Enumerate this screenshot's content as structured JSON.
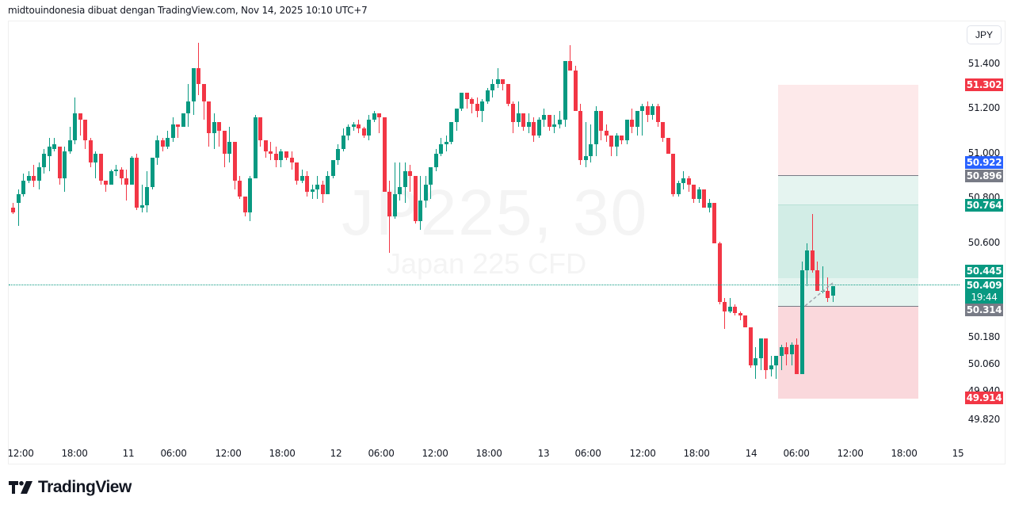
{
  "caption": "midtouindonesia dibuat dengan TradingView.com, Nov 14, 2025 10:10 UTC+7",
  "watermark": {
    "symbol": "JP225, 30",
    "description": "Japan 225 CFD"
  },
  "currency": "JPY",
  "brand": {
    "name": "TradingView"
  },
  "colors": {
    "up": "#089981",
    "down": "#f23645",
    "target_zone": "#d2ede6",
    "target_zone_light": "#e5f4f0",
    "stop_zone": "#fad8dc",
    "stop_zone_light": "#fde9ea",
    "entry_line": "#787b86",
    "current_price_line": "#089981",
    "blue_label": "#2962ff"
  },
  "price_scale": {
    "ticks": [
      "51.400",
      "51.200",
      "51.000",
      "50.800",
      "50.600",
      "50.180",
      "50.060",
      "49.940",
      "49.820"
    ]
  },
  "price_labels": [
    {
      "value": "51.302",
      "color": "#f23645"
    },
    {
      "value": "50.922",
      "color": "#2962ff"
    },
    {
      "value": "50.896",
      "color": "#787b86"
    },
    {
      "value": "50.764",
      "color": "#089981"
    },
    {
      "value": "50.445",
      "color": "#089981"
    },
    {
      "value": "50.409",
      "color": "#089981"
    },
    {
      "value": "19:44",
      "color": "#089981"
    },
    {
      "value": "50.314",
      "color": "#787b86"
    },
    {
      "value": "49.914",
      "color": "#f23645"
    }
  ],
  "time_axis": {
    "ticks": [
      "12:00",
      "18:00",
      "11",
      "06:00",
      "12:00",
      "18:00",
      "12",
      "06:00",
      "12:00",
      "18:00",
      "13",
      "06:00",
      "12:00",
      "18:00",
      "14",
      "06:00",
      "12:00",
      "18:00",
      "15"
    ]
  },
  "chart_data": {
    "type": "candlestick",
    "title": "JP225, 30",
    "subtitle": "Japan 225 CFD",
    "xlabel": "",
    "ylabel": "JPY",
    "ylim": [
      49.78,
      51.58
    ],
    "grid": false,
    "x_ticks": [
      "12:00",
      "18:00",
      "11",
      "06:00",
      "12:00",
      "18:00",
      "12",
      "06:00",
      "12:00",
      "18:00",
      "13",
      "06:00",
      "12:00",
      "18:00",
      "14",
      "06:00",
      "12:00",
      "18:00",
      "15"
    ],
    "y_ticks": [
      51.4,
      51.2,
      51.0,
      50.8,
      50.6,
      50.18,
      50.06,
      49.94,
      49.82
    ],
    "last_price": 50.409,
    "countdown": "19:44",
    "position_tool": {
      "type": "long",
      "entry": 50.896,
      "take_profit": 51.302,
      "stop_loss": 49.914,
      "other_levels": [
        50.922,
        50.764,
        50.445,
        50.314
      ]
    },
    "candles_ohlc": [
      [
        50.76,
        50.78,
        50.73,
        50.74
      ],
      [
        50.78,
        50.84,
        50.68,
        50.82
      ],
      [
        50.82,
        50.91,
        50.81,
        50.88
      ],
      [
        50.88,
        50.92,
        50.87,
        50.9
      ],
      [
        50.9,
        50.95,
        50.85,
        50.88
      ],
      [
        50.88,
        50.96,
        50.84,
        50.94
      ],
      [
        50.94,
        51.02,
        50.91,
        51.0
      ],
      [
        50.99,
        51.07,
        50.92,
        51.03
      ],
      [
        51.02,
        51.07,
        51.01,
        51.04
      ],
      [
        51.03,
        51.03,
        50.86,
        50.89
      ],
      [
        50.89,
        51.03,
        50.83,
        51.01
      ],
      [
        51.01,
        51.12,
        51.0,
        51.06
      ],
      [
        51.06,
        51.25,
        51.04,
        51.18
      ],
      [
        51.18,
        51.14,
        51.08,
        51.15
      ],
      [
        51.15,
        51.14,
        51.02,
        51.06
      ],
      [
        51.06,
        51.07,
        50.94,
        50.96
      ],
      [
        50.96,
        51.01,
        50.89,
        51.0
      ],
      [
        51.0,
        50.99,
        50.86,
        50.88
      ],
      [
        50.88,
        50.88,
        50.83,
        50.86
      ],
      [
        50.86,
        50.93,
        50.86,
        50.92
      ],
      [
        50.92,
        50.95,
        50.9,
        50.93
      ],
      [
        50.93,
        50.94,
        50.86,
        50.89
      ],
      [
        50.89,
        50.93,
        50.79,
        50.86
      ],
      [
        50.86,
        50.99,
        50.87,
        50.98
      ],
      [
        50.98,
        51.0,
        50.75,
        50.76
      ],
      [
        50.76,
        50.86,
        50.74,
        50.77
      ],
      [
        50.77,
        50.92,
        50.74,
        50.85
      ],
      [
        50.85,
        50.98,
        50.84,
        50.98
      ],
      [
        50.98,
        51.08,
        50.95,
        51.06
      ],
      [
        51.06,
        51.07,
        51.01,
        51.03
      ],
      [
        51.03,
        51.1,
        51.02,
        51.07
      ],
      [
        51.07,
        51.16,
        51.05,
        51.13
      ],
      [
        51.13,
        51.13,
        51.07,
        51.12
      ],
      [
        51.12,
        51.18,
        51.12,
        51.18
      ],
      [
        51.18,
        51.31,
        51.12,
        51.23
      ],
      [
        51.23,
        51.36,
        51.17,
        51.38
      ],
      [
        51.38,
        51.49,
        51.26,
        51.31
      ],
      [
        51.31,
        51.25,
        51.15,
        51.23
      ],
      [
        51.23,
        51.16,
        51.03,
        51.09
      ],
      [
        51.09,
        51.18,
        51.02,
        51.14
      ],
      [
        51.14,
        51.13,
        51.03,
        51.1
      ],
      [
        51.1,
        51.09,
        50.94,
        51.0
      ],
      [
        51.0,
        51.12,
        50.96,
        51.05
      ],
      [
        51.05,
        51.04,
        50.84,
        50.88
      ],
      [
        50.88,
        50.9,
        50.8,
        50.81
      ],
      [
        50.81,
        50.8,
        50.72,
        50.74
      ],
      [
        50.74,
        50.9,
        50.7,
        50.89
      ],
      [
        50.89,
        51.17,
        51.05,
        51.16
      ],
      [
        51.16,
        51.14,
        51.03,
        51.06
      ],
      [
        51.06,
        51.05,
        50.98,
        51.01
      ],
      [
        51.01,
        51.05,
        50.97,
        51.0
      ],
      [
        51.0,
        51.03,
        50.94,
        50.97
      ],
      [
        50.97,
        51.02,
        50.94,
        51.01
      ],
      [
        51.01,
        50.99,
        50.97,
        50.98
      ],
      [
        50.98,
        51.01,
        50.93,
        50.96
      ],
      [
        50.96,
        50.96,
        50.86,
        50.88
      ],
      [
        50.88,
        50.93,
        50.87,
        50.9
      ],
      [
        50.9,
        50.92,
        50.81,
        50.83
      ],
      [
        50.83,
        50.86,
        50.8,
        50.84
      ],
      [
        50.84,
        50.9,
        50.8,
        50.86
      ],
      [
        50.86,
        50.88,
        50.78,
        50.82
      ],
      [
        50.82,
        50.92,
        50.82,
        50.9
      ],
      [
        50.9,
        50.96,
        50.89,
        50.97
      ],
      [
        50.97,
        51.04,
        50.95,
        51.02
      ],
      [
        51.02,
        51.11,
        51.01,
        51.08
      ],
      [
        51.08,
        51.13,
        51.06,
        51.12
      ],
      [
        51.12,
        51.14,
        51.1,
        51.13
      ],
      [
        51.13,
        51.15,
        51.09,
        51.11
      ],
      [
        51.11,
        51.12,
        51.07,
        51.08
      ],
      [
        51.08,
        51.17,
        51.06,
        51.15
      ],
      [
        51.15,
        51.19,
        51.14,
        51.18
      ],
      [
        51.18,
        51.17,
        51.09,
        51.16
      ],
      [
        51.16,
        51.15,
        50.86,
        50.83
      ],
      [
        50.83,
        50.88,
        50.56,
        50.72
      ],
      [
        50.72,
        50.96,
        50.71,
        50.82
      ],
      [
        50.82,
        50.96,
        50.79,
        50.85
      ],
      [
        50.85,
        50.96,
        50.78,
        50.92
      ],
      [
        50.92,
        50.95,
        50.83,
        50.9
      ],
      [
        50.9,
        50.88,
        50.69,
        50.7
      ],
      [
        50.7,
        50.9,
        50.66,
        50.79
      ],
      [
        50.79,
        50.9,
        50.76,
        50.86
      ],
      [
        50.86,
        50.92,
        50.8,
        50.94
      ],
      [
        50.94,
        51.02,
        50.92,
        51.0
      ],
      [
        51.0,
        51.07,
        50.99,
        51.04
      ],
      [
        51.04,
        51.08,
        51.01,
        51.05
      ],
      [
        51.05,
        51.14,
        51.04,
        51.14
      ],
      [
        51.14,
        51.19,
        51.1,
        51.2
      ],
      [
        51.2,
        51.27,
        51.19,
        51.27
      ],
      [
        51.27,
        51.25,
        51.2,
        51.24
      ],
      [
        51.24,
        51.25,
        51.18,
        51.22
      ],
      [
        51.22,
        51.25,
        51.16,
        51.19
      ],
      [
        51.19,
        51.24,
        51.14,
        51.23
      ],
      [
        51.23,
        51.29,
        51.22,
        51.28
      ],
      [
        51.28,
        51.33,
        51.25,
        51.31
      ],
      [
        51.31,
        51.38,
        51.29,
        51.33
      ],
      [
        51.33,
        51.33,
        51.28,
        51.31
      ],
      [
        51.31,
        51.29,
        51.21,
        51.22
      ],
      [
        51.22,
        51.23,
        51.09,
        51.14
      ],
      [
        51.14,
        51.23,
        51.12,
        51.18
      ],
      [
        51.18,
        51.16,
        51.1,
        51.12
      ],
      [
        51.12,
        51.18,
        51.09,
        51.14
      ],
      [
        51.14,
        51.16,
        51.05,
        51.08
      ],
      [
        51.08,
        51.16,
        51.07,
        51.15
      ],
      [
        51.15,
        51.2,
        51.12,
        51.17
      ],
      [
        51.17,
        51.16,
        51.1,
        51.12
      ],
      [
        51.12,
        51.17,
        51.09,
        51.13
      ],
      [
        51.13,
        51.19,
        51.11,
        51.15
      ],
      [
        51.15,
        51.28,
        51.12,
        51.41
      ],
      [
        51.41,
        51.48,
        51.37,
        51.37
      ],
      [
        51.37,
        51.39,
        51.19,
        51.19
      ],
      [
        51.19,
        51.22,
        50.95,
        50.97
      ],
      [
        50.97,
        51.14,
        50.94,
        50.99
      ],
      [
        50.99,
        51.13,
        50.96,
        51.04
      ],
      [
        51.04,
        51.21,
        50.99,
        51.19
      ],
      [
        51.19,
        51.17,
        51.06,
        51.1
      ],
      [
        51.1,
        51.13,
        51.05,
        51.08
      ],
      [
        51.08,
        51.06,
        50.99,
        51.03
      ],
      [
        51.03,
        51.09,
        50.99,
        51.08
      ],
      [
        51.08,
        51.07,
        51.04,
        51.06
      ],
      [
        51.06,
        51.15,
        51.04,
        51.15
      ],
      [
        51.15,
        51.2,
        51.09,
        51.12
      ],
      [
        51.12,
        51.18,
        51.08,
        51.19
      ],
      [
        51.19,
        51.22,
        51.08,
        51.21
      ],
      [
        51.21,
        51.23,
        51.14,
        51.17
      ],
      [
        51.17,
        51.22,
        51.15,
        51.21
      ],
      [
        51.21,
        51.22,
        51.12,
        51.14
      ],
      [
        51.14,
        51.11,
        51.05,
        51.07
      ],
      [
        51.07,
        51.07,
        51.0,
        51.0
      ],
      [
        51.0,
        50.99,
        50.81,
        50.82
      ],
      [
        50.82,
        50.88,
        50.81,
        50.87
      ],
      [
        50.87,
        50.92,
        50.84,
        50.89
      ],
      [
        50.89,
        50.9,
        50.83,
        50.86
      ],
      [
        50.86,
        50.86,
        50.78,
        50.8
      ],
      [
        50.8,
        50.85,
        50.78,
        50.84
      ],
      [
        50.84,
        50.83,
        50.76,
        50.76
      ],
      [
        50.76,
        50.8,
        50.74,
        50.78
      ],
      [
        50.78,
        50.78,
        50.6,
        50.6
      ],
      [
        50.6,
        50.61,
        50.33,
        50.34
      ],
      [
        50.34,
        50.36,
        50.22,
        50.3
      ],
      [
        50.3,
        50.36,
        50.29,
        50.32
      ],
      [
        50.32,
        50.33,
        50.28,
        50.29
      ],
      [
        50.29,
        50.3,
        50.26,
        50.28
      ],
      [
        50.28,
        50.28,
        50.23,
        50.23
      ],
      [
        50.23,
        50.22,
        50.05,
        50.06
      ],
      [
        50.06,
        50.14,
        50.0,
        50.09
      ],
      [
        50.09,
        50.18,
        50.04,
        50.18
      ],
      [
        50.18,
        50.18,
        50.0,
        50.04
      ],
      [
        50.04,
        50.1,
        50.01,
        50.06
      ],
      [
        50.06,
        50.09,
        50.0,
        50.1
      ],
      [
        50.1,
        50.15,
        50.04,
        50.14
      ],
      [
        50.14,
        50.16,
        50.06,
        50.11
      ],
      [
        50.11,
        50.16,
        50.06,
        50.15
      ],
      [
        50.15,
        50.18,
        50.05,
        50.02
      ],
      [
        50.02,
        50.52,
        50.02,
        50.48
      ],
      [
        50.48,
        50.6,
        50.41,
        50.57
      ],
      [
        50.57,
        50.73,
        50.47,
        50.48
      ],
      [
        50.48,
        50.52,
        50.4,
        50.39
      ],
      [
        50.39,
        50.5,
        50.38,
        50.39
      ],
      [
        50.39,
        50.45,
        50.34,
        50.36
      ],
      [
        50.37,
        50.41,
        50.34,
        50.41
      ]
    ]
  }
}
